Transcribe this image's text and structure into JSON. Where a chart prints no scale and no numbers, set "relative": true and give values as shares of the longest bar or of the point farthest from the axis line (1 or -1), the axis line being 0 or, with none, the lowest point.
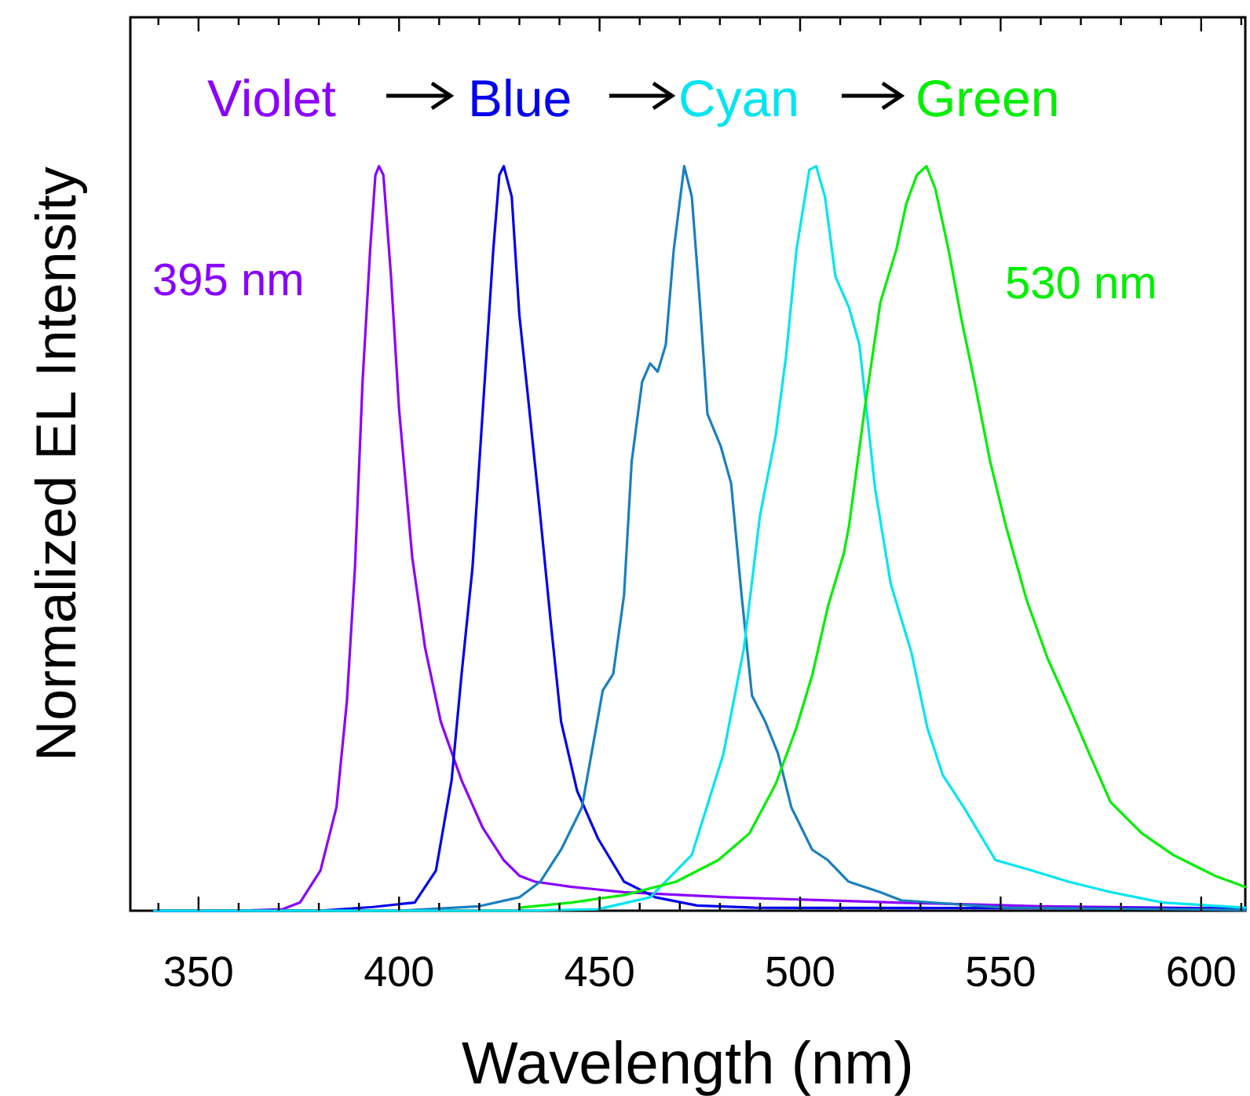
{
  "chart_data": {
    "type": "line",
    "xlabel": "Wavelength (nm)",
    "ylabel": "Normalized EL Intensity",
    "relative": true,
    "xlim": [
      333,
      611
    ],
    "xticks": [
      {
        "value": 340,
        "label": null
      },
      350,
      {
        "value": 360,
        "label": null
      },
      {
        "value": 370,
        "label": null
      },
      {
        "value": 380,
        "label": null
      },
      {
        "value": 390,
        "label": null
      },
      400,
      {
        "value": 410,
        "label": null
      },
      {
        "value": 420,
        "label": null
      },
      {
        "value": 430,
        "label": null
      },
      {
        "value": 440,
        "label": null
      },
      450,
      {
        "value": 460,
        "label": null
      },
      {
        "value": 470,
        "label": null
      },
      {
        "value": 480,
        "label": null
      },
      {
        "value": 490,
        "label": null
      },
      500,
      {
        "value": 510,
        "label": null
      },
      {
        "value": 520,
        "label": null
      },
      {
        "value": 530,
        "label": null
      },
      {
        "value": 540,
        "label": null
      },
      550,
      {
        "value": 560,
        "label": null
      },
      {
        "value": 570,
        "label": null
      },
      {
        "value": 580,
        "label": null
      },
      {
        "value": 590,
        "label": null
      },
      600,
      {
        "value": 610,
        "label": null
      }
    ],
    "grid": false,
    "marker": "none",
    "line_style": "solid",
    "annotations": [
      "Violet",
      "Blue",
      "Cyan",
      "Green",
      "395 nm",
      "530 nm"
    ],
    "series": [
      {
        "color": "#8a00ff",
        "x": [
          339,
          360,
          371,
          375.3,
          380.4,
          384.4,
          387,
          389,
          390.9,
          392.8,
          394.1,
          395,
          396.1,
          398,
          400,
          403.3,
          406.5,
          410.4,
          415.6,
          420.9,
          426.1,
          430,
          433.9,
          443,
          456,
          482,
          524,
          560,
          611
        ],
        "values": [
          0,
          0,
          0.002,
          0.011,
          0.054,
          0.139,
          0.282,
          0.46,
          0.71,
          0.888,
          0.988,
          1,
          0.988,
          0.852,
          0.674,
          0.474,
          0.353,
          0.254,
          0.175,
          0.111,
          0.068,
          0.047,
          0.039,
          0.032,
          0.025,
          0.018,
          0.011,
          0.006,
          0.003
        ]
      },
      {
        "color": "#0000ee",
        "x": [
          339,
          380,
          393.5,
          403.9,
          409.2,
          413.1,
          415.6,
          418.3,
          420.9,
          423.5,
          425,
          426.1,
          428.1,
          430,
          432.6,
          435.2,
          437.8,
          440.4,
          444.4,
          449.6,
          456.1,
          463.9,
          474.3,
          488.7,
          611
        ],
        "values": [
          0,
          0,
          0.005,
          0.011,
          0.054,
          0.175,
          0.318,
          0.46,
          0.674,
          0.888,
          0.988,
          1,
          0.959,
          0.8,
          0.667,
          0.531,
          0.389,
          0.254,
          0.161,
          0.097,
          0.039,
          0.018,
          0.007,
          0.004,
          0.003
        ]
      },
      {
        "color": "#1a7fbf",
        "x": [
          339,
          400,
          420,
          430,
          435.2,
          440.4,
          445.6,
          450.8,
          453.4,
          456.1,
          458,
          460.6,
          462.6,
          464.5,
          466.5,
          468.5,
          471.1,
          473,
          475,
          476.9,
          480.2,
          482.8,
          485.4,
          488,
          491.3,
          494.5,
          497.8,
          503,
          506.9,
          512.1,
          519.9,
          525.2,
          551.3,
          611
        ],
        "values": [
          0,
          0,
          0.006,
          0.018,
          0.039,
          0.082,
          0.139,
          0.296,
          0.318,
          0.424,
          0.603,
          0.71,
          0.735,
          0.724,
          0.76,
          0.888,
          1,
          0.959,
          0.817,
          0.667,
          0.624,
          0.574,
          0.424,
          0.289,
          0.254,
          0.211,
          0.139,
          0.082,
          0.068,
          0.039,
          0.025,
          0.014,
          0.004,
          0.001
        ]
      },
      {
        "color": "#00e5f0",
        "x": [
          339,
          430,
          449.6,
          462.6,
          473,
          480.9,
          486,
          490,
          493.9,
          496.5,
          499.1,
          502.3,
          504,
          506.2,
          508.8,
          512.2,
          514.8,
          518.7,
          522.6,
          527.8,
          531.7,
          535.6,
          540.8,
          548.7,
          557.8,
          566.9,
          577.4,
          590.4,
          611
        ],
        "values": [
          0,
          0,
          0.002,
          0.018,
          0.075,
          0.211,
          0.353,
          0.531,
          0.638,
          0.745,
          0.888,
          0.995,
          1,
          0.959,
          0.852,
          0.81,
          0.76,
          0.567,
          0.439,
          0.346,
          0.246,
          0.182,
          0.139,
          0.068,
          0.054,
          0.039,
          0.025,
          0.011,
          0.004
        ]
      },
      {
        "color": "#00ee00",
        "x": [
          430,
          443,
          456.1,
          469.1,
          479.6,
          487.4,
          493.9,
          499.1,
          503.1,
          507,
          510.9,
          512.2,
          516.1,
          520,
          524,
          526.5,
          529.1,
          531.5,
          533.7,
          537,
          540.2,
          543.5,
          547.4,
          551.3,
          556.5,
          561.7,
          567,
          572.1,
          577.4,
          585.2,
          593,
          603.4,
          611
        ],
        "values": [
          0.004,
          0.011,
          0.021,
          0.039,
          0.068,
          0.104,
          0.17,
          0.246,
          0.318,
          0.41,
          0.48,
          0.517,
          0.674,
          0.817,
          0.888,
          0.95,
          0.988,
          1,
          0.97,
          0.888,
          0.795,
          0.71,
          0.603,
          0.517,
          0.417,
          0.339,
          0.275,
          0.211,
          0.146,
          0.104,
          0.075,
          0.047,
          0.032
        ]
      }
    ]
  }
}
